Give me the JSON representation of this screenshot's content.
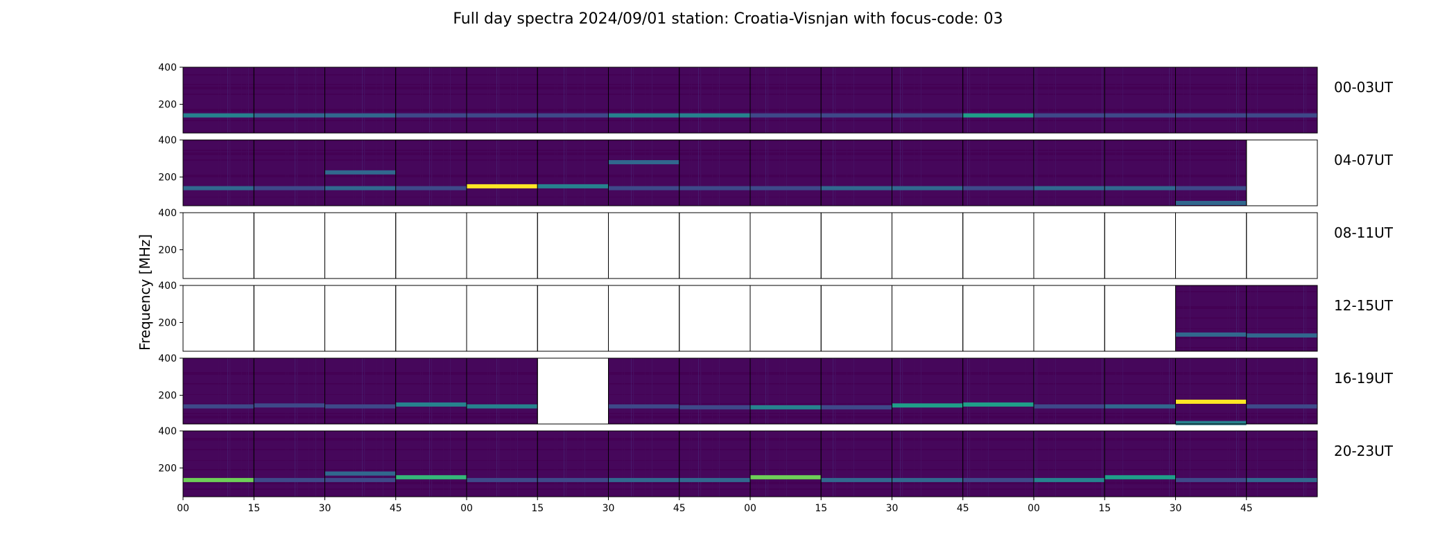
{
  "chart_data": {
    "type": "heatmap",
    "title": "Full day spectra 2024/09/01 station: Croatia-Visnjan with focus-code: 03",
    "ylabel": "Frequency [MHz]",
    "ylim": [
      45,
      400
    ],
    "yticks": [
      200,
      400
    ],
    "xlabel": "",
    "xtick_labels": [
      "00",
      "15",
      "30",
      "45",
      "00",
      "15",
      "30",
      "45",
      "00",
      "15",
      "30",
      "45",
      "00",
      "15",
      "30",
      "45"
    ],
    "colormap": "viridis",
    "colors": {
      "empty": "#ffffff",
      "viridis": [
        "#440154",
        "#46085c",
        "#482878",
        "#3e4989",
        "#31688e",
        "#26828e",
        "#1f9e89",
        "#35b779",
        "#6ece58",
        "#b5de2b",
        "#fde725"
      ]
    },
    "rows": [
      {
        "label": "00-03UT",
        "panels": [
          {
            "has_data": true,
            "bands": [
              [
                140,
                0.45
              ]
            ]
          },
          {
            "has_data": true,
            "bands": [
              [
                140,
                0.35
              ]
            ]
          },
          {
            "has_data": true,
            "bands": [
              [
                140,
                0.4
              ]
            ]
          },
          {
            "has_data": true,
            "bands": [
              [
                140,
                0.3
              ]
            ]
          },
          {
            "has_data": true,
            "bands": [
              [
                140,
                0.3
              ]
            ]
          },
          {
            "has_data": true,
            "bands": [
              [
                140,
                0.3
              ]
            ]
          },
          {
            "has_data": true,
            "bands": [
              [
                140,
                0.45
              ]
            ]
          },
          {
            "has_data": true,
            "bands": [
              [
                140,
                0.45
              ]
            ]
          },
          {
            "has_data": true,
            "bands": [
              [
                140,
                0.3
              ]
            ]
          },
          {
            "has_data": true,
            "bands": [
              [
                140,
                0.25
              ]
            ]
          },
          {
            "has_data": true,
            "bands": [
              [
                140,
                0.25
              ]
            ]
          },
          {
            "has_data": true,
            "bands": [
              [
                140,
                0.55
              ]
            ]
          },
          {
            "has_data": true,
            "bands": [
              [
                140,
                0.25
              ]
            ]
          },
          {
            "has_data": true,
            "bands": [
              [
                140,
                0.25
              ]
            ]
          },
          {
            "has_data": true,
            "bands": [
              [
                140,
                0.3
              ]
            ]
          },
          {
            "has_data": true,
            "bands": [
              [
                140,
                0.3
              ]
            ]
          }
        ]
      },
      {
        "label": "04-07UT",
        "panels": [
          {
            "has_data": true,
            "bands": [
              [
                140,
                0.35
              ]
            ]
          },
          {
            "has_data": true,
            "bands": [
              [
                140,
                0.3
              ]
            ]
          },
          {
            "has_data": true,
            "bands": [
              [
                140,
                0.35
              ],
              [
                225,
                0.4
              ]
            ]
          },
          {
            "has_data": true,
            "bands": [
              [
                140,
                0.3
              ]
            ]
          },
          {
            "has_data": true,
            "bands": [
              [
                150,
                0.95
              ]
            ]
          },
          {
            "has_data": true,
            "bands": [
              [
                150,
                0.45
              ]
            ]
          },
          {
            "has_data": true,
            "bands": [
              [
                140,
                0.3
              ],
              [
                280,
                0.4
              ]
            ]
          },
          {
            "has_data": true,
            "bands": [
              [
                140,
                0.3
              ]
            ]
          },
          {
            "has_data": true,
            "bands": [
              [
                140,
                0.3
              ]
            ]
          },
          {
            "has_data": true,
            "bands": [
              [
                140,
                0.35
              ]
            ]
          },
          {
            "has_data": true,
            "bands": [
              [
                140,
                0.35
              ]
            ]
          },
          {
            "has_data": true,
            "bands": [
              [
                140,
                0.3
              ]
            ]
          },
          {
            "has_data": true,
            "bands": [
              [
                140,
                0.35
              ]
            ]
          },
          {
            "has_data": true,
            "bands": [
              [
                140,
                0.35
              ]
            ]
          },
          {
            "has_data": true,
            "bands": [
              [
                140,
                0.3
              ],
              [
                60,
                0.35
              ]
            ]
          },
          {
            "has_data": false,
            "bands": []
          }
        ]
      },
      {
        "label": "08-11UT",
        "panels": [
          {
            "has_data": false,
            "bands": []
          },
          {
            "has_data": false,
            "bands": []
          },
          {
            "has_data": false,
            "bands": []
          },
          {
            "has_data": false,
            "bands": []
          },
          {
            "has_data": false,
            "bands": []
          },
          {
            "has_data": false,
            "bands": []
          },
          {
            "has_data": false,
            "bands": []
          },
          {
            "has_data": false,
            "bands": []
          },
          {
            "has_data": false,
            "bands": []
          },
          {
            "has_data": false,
            "bands": []
          },
          {
            "has_data": false,
            "bands": []
          },
          {
            "has_data": false,
            "bands": []
          },
          {
            "has_data": false,
            "bands": []
          },
          {
            "has_data": false,
            "bands": []
          },
          {
            "has_data": false,
            "bands": []
          },
          {
            "has_data": false,
            "bands": []
          }
        ]
      },
      {
        "label": "12-15UT",
        "panels": [
          {
            "has_data": false,
            "bands": []
          },
          {
            "has_data": false,
            "bands": []
          },
          {
            "has_data": false,
            "bands": []
          },
          {
            "has_data": false,
            "bands": []
          },
          {
            "has_data": false,
            "bands": []
          },
          {
            "has_data": false,
            "bands": []
          },
          {
            "has_data": false,
            "bands": []
          },
          {
            "has_data": false,
            "bands": []
          },
          {
            "has_data": false,
            "bands": []
          },
          {
            "has_data": false,
            "bands": []
          },
          {
            "has_data": false,
            "bands": []
          },
          {
            "has_data": false,
            "bands": []
          },
          {
            "has_data": false,
            "bands": []
          },
          {
            "has_data": false,
            "bands": []
          },
          {
            "has_data": true,
            "bands": [
              [
                135,
                0.35
              ]
            ]
          },
          {
            "has_data": true,
            "bands": [
              [
                130,
                0.4
              ]
            ]
          }
        ]
      },
      {
        "label": "16-19UT",
        "panels": [
          {
            "has_data": true,
            "bands": [
              [
                140,
                0.3
              ]
            ]
          },
          {
            "has_data": true,
            "bands": [
              [
                145,
                0.3
              ]
            ]
          },
          {
            "has_data": true,
            "bands": [
              [
                140,
                0.25
              ]
            ]
          },
          {
            "has_data": true,
            "bands": [
              [
                150,
                0.5
              ]
            ]
          },
          {
            "has_data": true,
            "bands": [
              [
                140,
                0.45
              ]
            ]
          },
          {
            "has_data": false,
            "bands": []
          },
          {
            "has_data": true,
            "bands": [
              [
                140,
                0.3
              ]
            ]
          },
          {
            "has_data": true,
            "bands": [
              [
                135,
                0.3
              ]
            ]
          },
          {
            "has_data": true,
            "bands": [
              [
                135,
                0.45
              ]
            ]
          },
          {
            "has_data": true,
            "bands": [
              [
                135,
                0.3
              ]
            ]
          },
          {
            "has_data": true,
            "bands": [
              [
                145,
                0.55
              ]
            ]
          },
          {
            "has_data": true,
            "bands": [
              [
                150,
                0.55
              ]
            ]
          },
          {
            "has_data": true,
            "bands": [
              [
                140,
                0.3
              ]
            ]
          },
          {
            "has_data": true,
            "bands": [
              [
                140,
                0.35
              ]
            ]
          },
          {
            "has_data": true,
            "bands": [
              [
                165,
                1.0
              ],
              [
                50,
                0.45
              ]
            ]
          },
          {
            "has_data": true,
            "bands": [
              [
                140,
                0.3
              ]
            ]
          }
        ]
      },
      {
        "label": "20-23UT",
        "panels": [
          {
            "has_data": true,
            "bands": [
              [
                135,
                0.8
              ]
            ]
          },
          {
            "has_data": true,
            "bands": [
              [
                135,
                0.3
              ]
            ]
          },
          {
            "has_data": true,
            "bands": [
              [
                170,
                0.4
              ],
              [
                135,
                0.3
              ]
            ]
          },
          {
            "has_data": true,
            "bands": [
              [
                150,
                0.7
              ]
            ]
          },
          {
            "has_data": true,
            "bands": [
              [
                135,
                0.3
              ]
            ]
          },
          {
            "has_data": true,
            "bands": [
              [
                135,
                0.3
              ]
            ]
          },
          {
            "has_data": true,
            "bands": [
              [
                135,
                0.35
              ]
            ]
          },
          {
            "has_data": true,
            "bands": [
              [
                135,
                0.4
              ]
            ]
          },
          {
            "has_data": true,
            "bands": [
              [
                150,
                0.75
              ]
            ]
          },
          {
            "has_data": true,
            "bands": [
              [
                135,
                0.35
              ]
            ]
          },
          {
            "has_data": true,
            "bands": [
              [
                135,
                0.35
              ]
            ]
          },
          {
            "has_data": true,
            "bands": [
              [
                135,
                0.3
              ]
            ]
          },
          {
            "has_data": true,
            "bands": [
              [
                135,
                0.45
              ]
            ]
          },
          {
            "has_data": true,
            "bands": [
              [
                150,
                0.55
              ]
            ]
          },
          {
            "has_data": true,
            "bands": [
              [
                135,
                0.3
              ]
            ]
          },
          {
            "has_data": true,
            "bands": [
              [
                135,
                0.35
              ]
            ]
          }
        ]
      }
    ]
  }
}
